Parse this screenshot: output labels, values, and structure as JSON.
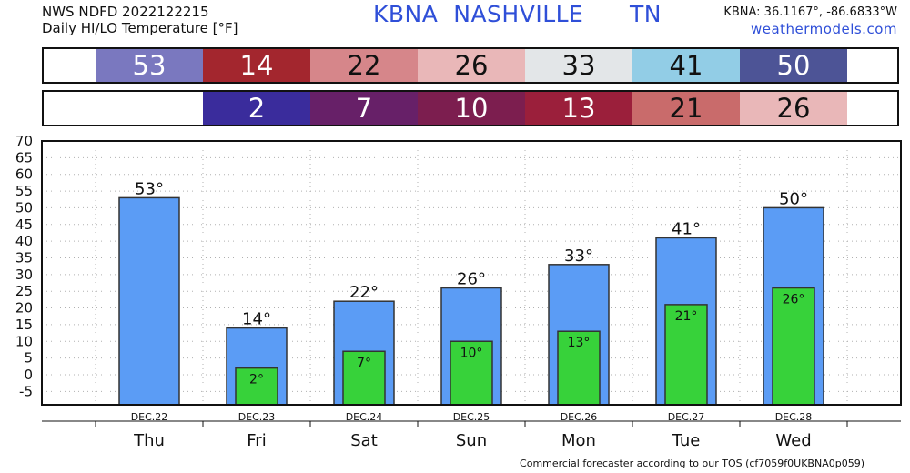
{
  "header": {
    "source_line": "NWS NDFD 2022122215",
    "product_line": "Daily HI/LO Temperature [°F]",
    "station_line": "KBNA  NASHVILLE      TN",
    "coords": "KBNA: 36.1167°, -86.6833°W",
    "site": "weathermodels.com"
  },
  "hi_band": [
    {
      "value": "53",
      "color": "#7a78bf",
      "text_color": "#ffffff"
    },
    {
      "value": "14",
      "color": "#a3262e",
      "text_color": "#ffffff"
    },
    {
      "value": "22",
      "color": "#d6868a",
      "text_color": "#111111"
    },
    {
      "value": "26",
      "color": "#e9b7b8",
      "text_color": "#111111"
    },
    {
      "value": "33",
      "color": "#e3e6e8",
      "text_color": "#111111"
    },
    {
      "value": "41",
      "color": "#92cde6",
      "text_color": "#111111"
    },
    {
      "value": "50",
      "color": "#4d5496",
      "text_color": "#ffffff"
    }
  ],
  "lo_band": [
    {
      "value": "2",
      "color": "#3a2c9c",
      "text_color": "#ffffff"
    },
    {
      "value": "7",
      "color": "#672068",
      "text_color": "#ffffff"
    },
    {
      "value": "10",
      "color": "#7c1e4f",
      "text_color": "#ffffff"
    },
    {
      "value": "13",
      "color": "#9b1f3b",
      "text_color": "#ffffff"
    },
    {
      "value": "21",
      "color": "#c96b6b",
      "text_color": "#111111"
    },
    {
      "value": "26",
      "color": "#e9b7b8",
      "text_color": "#111111"
    }
  ],
  "chart_data": {
    "type": "bar",
    "categories": [
      "DEC.22",
      "DEC.23",
      "DEC.24",
      "DEC.25",
      "DEC.26",
      "DEC.27",
      "DEC.28"
    ],
    "day_labels": [
      "Thu",
      "Fri",
      "Sat",
      "Sun",
      "Mon",
      "Tue",
      "Wed"
    ],
    "series": [
      {
        "values": [
          53,
          14,
          22,
          26,
          33,
          41,
          50
        ],
        "color": "#5b9cf5"
      },
      {
        "values": [
          null,
          2,
          7,
          10,
          13,
          21,
          26
        ],
        "color": "#37d23a"
      }
    ],
    "hi_labels": [
      "53°",
      "14°",
      "22°",
      "26°",
      "33°",
      "41°",
      "50°"
    ],
    "lo_labels": [
      "",
      "2°",
      "7°",
      "10°",
      "13°",
      "21°",
      "26°"
    ],
    "ylim": [
      -9,
      70
    ],
    "yticks": [
      70,
      65,
      60,
      55,
      50,
      45,
      40,
      35,
      30,
      25,
      20,
      15,
      10,
      5,
      0,
      -5
    ],
    "ytick_labels": [
      "70",
      "65",
      "60",
      "55",
      "50",
      "45",
      "40",
      "35",
      "30",
      "25",
      "20",
      "15",
      "10",
      "5",
      "0",
      "-5"
    ],
    "grid": true
  },
  "footer": "Commercial forecaster according to our TOS (cf7059f0UKBNA0p059)"
}
